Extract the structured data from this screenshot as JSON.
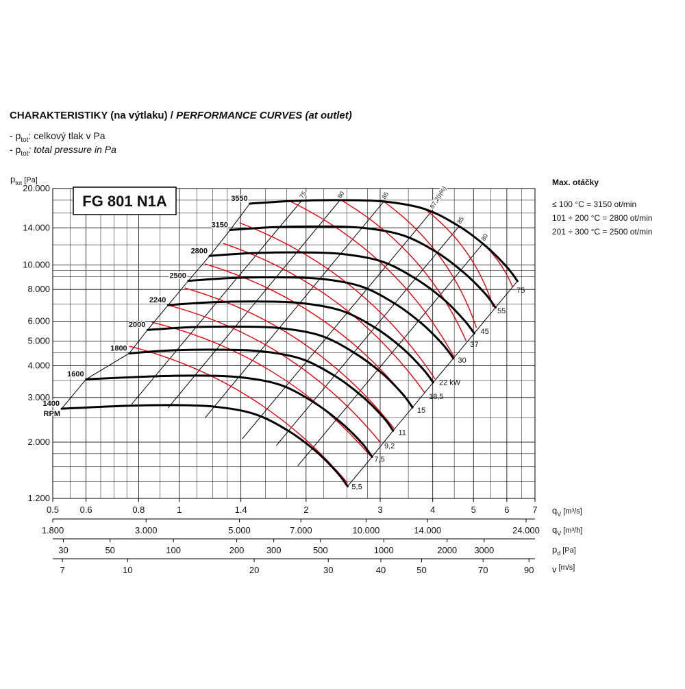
{
  "header": {
    "title_cz": "CHARAKTERISTIKY (na výtlaku) / ",
    "title_en": "PERFORMANCE CURVES (at outlet)",
    "notes": [
      {
        "prefix": "- ",
        "symbol": "p",
        "sub": "tot",
        "text": ": celkový tlak v Pa"
      },
      {
        "prefix": "- ",
        "symbol": "p",
        "sub": "tot",
        "text": ": total pressure in Pa"
      }
    ]
  },
  "side_note": {
    "title": "Max. otáčky",
    "lines": [
      "≤ 100 °C = 3150 ot/min",
      "101 ÷ 200 °C = 2800 ot/min",
      "201 ÷ 300 °C = 2500 ot/min"
    ]
  },
  "chart_data": {
    "type": "line",
    "model": "FG 801 N1A",
    "xscale": "log",
    "yscale": "log",
    "grid": true,
    "xlim": [
      0.5,
      7
    ],
    "ylim": [
      1200,
      20000
    ],
    "xticks": [
      0.5,
      0.6,
      0.8,
      1,
      1.4,
      2,
      3,
      4,
      5,
      6,
      7
    ],
    "xminor": [
      0.55,
      0.65,
      0.7,
      0.75,
      0.9,
      1.1,
      1.2,
      1.3,
      1.6,
      1.8,
      2.2,
      2.5,
      2.8,
      3.5,
      4.5,
      5.5,
      6.5
    ],
    "yticks": [
      {
        "value": 1200,
        "label": "1.200"
      },
      {
        "value": 2000,
        "label": "2.000"
      },
      {
        "value": 3000,
        "label": "3.000"
      },
      {
        "value": 4000,
        "label": "4.000"
      },
      {
        "value": 5000,
        "label": "5.000"
      },
      {
        "value": 6000,
        "label": "6.000"
      },
      {
        "value": 8000,
        "label": "8.000"
      },
      {
        "value": 10000,
        "label": "10.000"
      },
      {
        "value": 14000,
        "label": "14.000"
      },
      {
        "value": 20000,
        "label": "20.000"
      }
    ],
    "yminor": [
      1400,
      1600,
      1800,
      2500,
      3500,
      4500,
      7000,
      9000,
      9500,
      12000,
      16000,
      18000
    ],
    "y_label": {
      "symbol": "p",
      "sub": "tot",
      "unit": "[Pa]"
    },
    "x_label": {
      "symbol": "q",
      "sub": "V",
      "unit": "[m³/s]"
    },
    "rpm_unit": "RPM",
    "series": [
      {
        "name": "3550",
        "color": "#000000",
        "x": [
          1.47,
          1.88,
          2.42,
          3.06,
          3.83,
          4.62,
          5.37,
          6.01,
          6.36
        ],
        "y": [
          17440,
          17880,
          18000,
          17780,
          16600,
          14200,
          11780,
          9780,
          8630
        ]
      },
      {
        "name": "3150",
        "color": "#000000",
        "x": [
          1.32,
          1.67,
          2.15,
          2.72,
          3.4,
          4.1,
          4.76,
          5.33,
          5.64
        ],
        "y": [
          13730,
          14080,
          14170,
          14000,
          13070,
          11180,
          9270,
          7700,
          6790
        ]
      },
      {
        "name": "2800",
        "color": "#000000",
        "x": [
          1.18,
          1.48,
          1.91,
          2.41,
          3.02,
          3.64,
          4.24,
          4.74,
          5.02
        ],
        "y": [
          10850,
          11120,
          11200,
          11060,
          10330,
          8830,
          7330,
          6080,
          5370
        ]
      },
      {
        "name": "2500",
        "color": "#000000",
        "x": [
          1.05,
          1.32,
          1.7,
          2.15,
          2.7,
          3.25,
          3.78,
          4.23,
          4.48
        ],
        "y": [
          8650,
          8870,
          8930,
          8820,
          8230,
          7040,
          5840,
          4850,
          4280
        ]
      },
      {
        "name": "2240",
        "color": "#000000",
        "x": [
          0.94,
          1.19,
          1.53,
          1.93,
          2.42,
          2.92,
          3.39,
          3.79,
          4.01
        ],
        "y": [
          6940,
          7120,
          7170,
          7080,
          6610,
          5650,
          4690,
          3890,
          3440
        ]
      },
      {
        "name": "2000",
        "color": "#000000",
        "x": [
          0.84,
          1.06,
          1.36,
          1.72,
          2.16,
          2.6,
          3.03,
          3.39,
          3.58
        ],
        "y": [
          5540,
          5680,
          5710,
          5640,
          5270,
          4510,
          3740,
          3100,
          2740
        ]
      },
      {
        "name": "1800",
        "color": "#000000",
        "x": [
          0.76,
          0.95,
          1.23,
          1.55,
          1.94,
          2.34,
          2.72,
          3.05,
          3.22
        ],
        "y": [
          4480,
          4600,
          4630,
          4570,
          4270,
          3650,
          3030,
          2510,
          2220
        ]
      },
      {
        "name": "1600",
        "color": "#000000",
        "x": [
          0.6,
          0.85,
          1.09,
          1.38,
          1.73,
          2.08,
          2.42,
          2.71,
          2.87
        ],
        "y": [
          3540,
          3630,
          3660,
          3610,
          3370,
          2880,
          2390,
          1990,
          1750
        ]
      },
      {
        "name": "1400",
        "color": "#000000",
        "x": [
          0.525,
          0.74,
          0.95,
          1.21,
          1.51,
          1.82,
          2.12,
          2.37,
          2.51
        ],
        "y": [
          2710,
          2780,
          2800,
          2760,
          2580,
          2210,
          1830,
          1520,
          1340
        ]
      }
    ],
    "power_color": "#e3000f",
    "power_lines": [
      {
        "name": "5,5",
        "x": [
          0.76,
          2.51
        ],
        "y": [
          4780,
          1380
        ]
      },
      {
        "name": "7,5",
        "x": [
          0.86,
          2.84
        ],
        "y": [
          5940,
          1770
        ]
      },
      {
        "name": "9,2",
        "x": [
          0.94,
          3.0
        ],
        "y": [
          6940,
          2000
        ]
      },
      {
        "name": "11",
        "x": [
          1.03,
          3.24
        ],
        "y": [
          8110,
          2260
        ]
      },
      {
        "name": "15",
        "x": [
          1.15,
          3.59
        ],
        "y": [
          10090,
          2760
        ]
      },
      {
        "name": "18,5",
        "x": [
          1.27,
          3.83
        ],
        "y": [
          12160,
          3130
        ]
      },
      {
        "name": "22 kW",
        "x": [
          1.39,
          4.05
        ],
        "y": [
          14650,
          3550
        ]
      },
      {
        "name": "30",
        "x": [
          1.81,
          4.49
        ],
        "y": [
          17990,
          4350
        ]
      },
      {
        "name": "37",
        "x": [
          2.44,
          4.8
        ],
        "y": [
          17880,
          5020
        ]
      },
      {
        "name": "45",
        "x": [
          3.06,
          5.08
        ],
        "y": [
          17780,
          5650
        ]
      },
      {
        "name": "55",
        "x": [
          3.83,
          5.57
        ],
        "y": [
          16600,
          6810
        ]
      },
      {
        "name": "75",
        "x": [
          4.71,
          6.19
        ],
        "y": [
          13940,
          8210
        ]
      }
    ],
    "efficiency_lines": [
      {
        "name": "75",
        "x": [
          1.95,
          0.77
        ],
        "y": [
          17880,
          2820
        ]
      },
      {
        "name": "80",
        "x": [
          2.4,
          0.94
        ],
        "y": [
          17880,
          2730
        ]
      },
      {
        "name": "85",
        "x": [
          3.06,
          1.15
        ],
        "y": [
          17780,
          2490
        ]
      },
      {
        "name": "87,2(η%)",
        "x": [
          3.98,
          1.41
        ],
        "y": [
          16290,
          2060
        ]
      },
      {
        "name": "85",
        "x": [
          4.62,
          1.7
        ],
        "y": [
          14200,
          1940
        ]
      },
      {
        "name": "80",
        "x": [
          5.27,
          1.91
        ],
        "y": [
          12160,
          1610
        ]
      }
    ],
    "secondary_axes": [
      {
        "label": {
          "symbol": "q",
          "sub": "V",
          "unit": "[m³/h]"
        },
        "scale": "log",
        "lim": [
          1800,
          25200
        ],
        "ticks": [
          {
            "value": 1800,
            "label": "1.800"
          },
          {
            "value": 3000,
            "label": "3.000"
          },
          {
            "value": 5000,
            "label": "5.000"
          },
          {
            "value": 7000,
            "label": "7.000"
          },
          {
            "value": 10000,
            "label": "10.000"
          },
          {
            "value": 14000,
            "label": "14.000"
          },
          {
            "value": 24000,
            "label": "24.000"
          }
        ]
      },
      {
        "label": {
          "symbol": "p",
          "sub": "d",
          "unit": "[Pa]"
        },
        "scale": "log",
        "lim": [
          26.7,
          5233
        ],
        "ticks": [
          30,
          50,
          100,
          200,
          300,
          500,
          1000,
          2000,
          3000
        ]
      },
      {
        "label": {
          "symbol": "v",
          "sub": "",
          "unit": "[m/s]"
        },
        "scale": "log",
        "lim": [
          6.64,
          93
        ],
        "ticks": [
          7,
          10,
          20,
          30,
          40,
          50,
          70,
          90
        ]
      }
    ]
  }
}
